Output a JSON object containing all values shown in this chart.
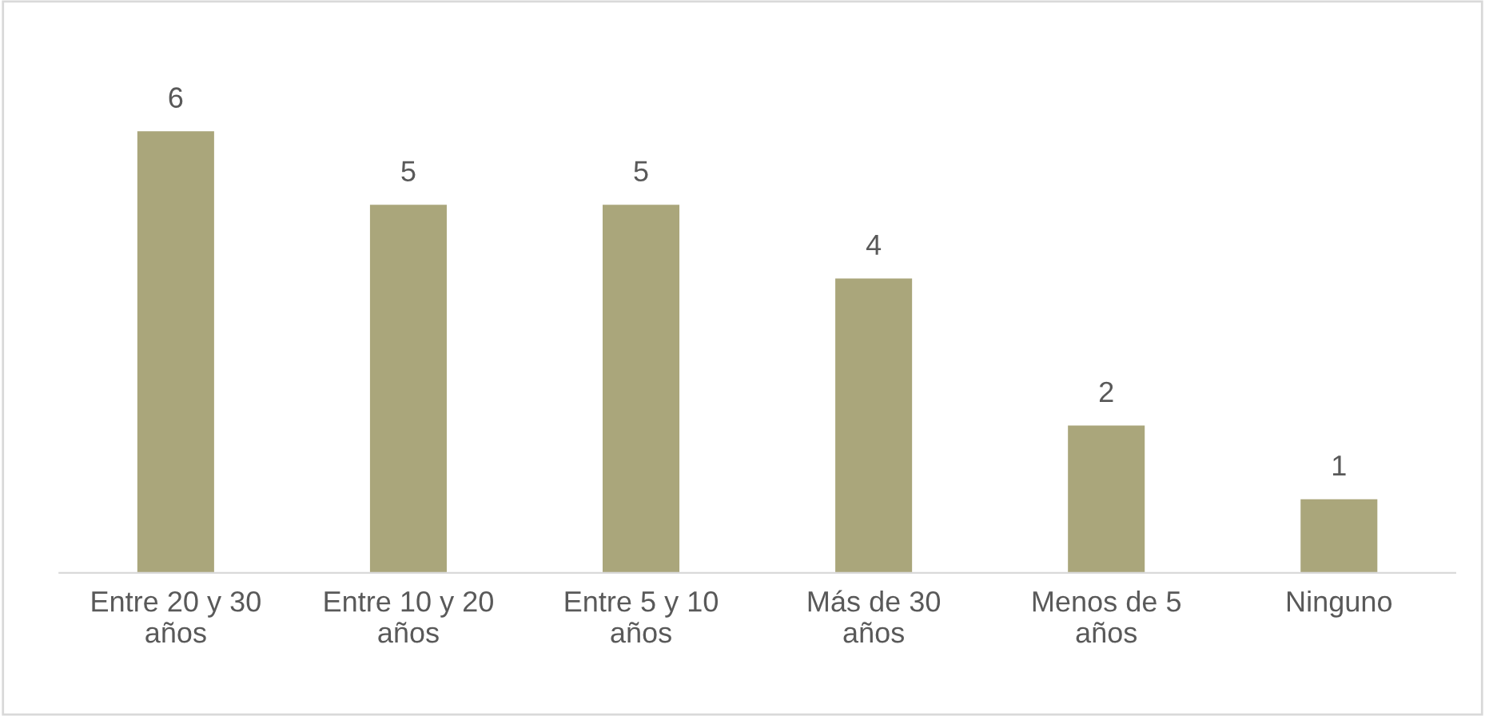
{
  "chart_data": {
    "type": "bar",
    "categories": [
      "Entre 20 y 30 años",
      "Entre 10 y 20 años",
      "Entre 5 y 10 años",
      "Más de 30 años",
      "Menos de 5 años",
      "Ninguno"
    ],
    "values": [
      6,
      5,
      5,
      4,
      2,
      1
    ],
    "color": "#aaa67b",
    "data_labels": true,
    "tick_labels": "x"
  }
}
